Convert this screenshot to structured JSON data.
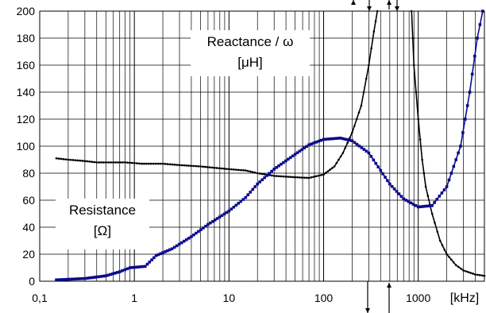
{
  "chart_data": {
    "type": "line",
    "x_scale": "log",
    "xlim": [
      0.1,
      5000
    ],
    "ylim": [
      0,
      200
    ],
    "grid": true,
    "xlabel": "",
    "ylabel": "",
    "x_unit_label": "[kHz]",
    "x_tick_labels": [
      "0,1",
      "1",
      "10",
      "100",
      "1000"
    ],
    "x_tick_values": [
      0.1,
      1,
      10,
      100,
      1000
    ],
    "y_tick_values": [
      0,
      20,
      40,
      60,
      80,
      100,
      120,
      140,
      160,
      180,
      200
    ],
    "y_tick_labels": [
      "0",
      "20",
      "40",
      "60",
      "80",
      "100",
      "120",
      "140",
      "160",
      "180",
      "200"
    ],
    "annotations": [
      {
        "id": "reactance",
        "line1": "Reactance / ω",
        "line2": "[μH]"
      },
      {
        "id": "resistance",
        "line1": "Resistance",
        "line2": "[Ω]"
      }
    ],
    "series": [
      {
        "id": "resistance",
        "color": "#000000",
        "marker": "small-dot",
        "points": [
          [
            0.15,
            91
          ],
          [
            0.2,
            90
          ],
          [
            0.3,
            89
          ],
          [
            0.4,
            88
          ],
          [
            0.5,
            88
          ],
          [
            0.6,
            88
          ],
          [
            0.8,
            88
          ],
          [
            1.0,
            87.5
          ],
          [
            1.2,
            87
          ],
          [
            1.5,
            87
          ],
          [
            2,
            87
          ],
          [
            3,
            86
          ],
          [
            5,
            85
          ],
          [
            7,
            84
          ],
          [
            10,
            83
          ],
          [
            15,
            82
          ],
          [
            20,
            80
          ],
          [
            30,
            78
          ],
          [
            50,
            77
          ],
          [
            70,
            76.5
          ],
          [
            100,
            79
          ],
          [
            130,
            85
          ],
          [
            160,
            95
          ],
          [
            200,
            110
          ],
          [
            250,
            130
          ],
          [
            300,
            160
          ],
          [
            340,
            185
          ],
          [
            370,
            200
          ]
        ],
        "points_2": [
          [
            850,
            200
          ],
          [
            900,
            160
          ],
          [
            1000,
            120
          ],
          [
            1100,
            90
          ],
          [
            1200,
            70
          ],
          [
            1400,
            50
          ],
          [
            1700,
            30
          ],
          [
            2000,
            20
          ],
          [
            2500,
            12
          ],
          [
            3000,
            8
          ],
          [
            4000,
            5
          ],
          [
            5000,
            4
          ]
        ]
      },
      {
        "id": "reactance",
        "color": "#0a0a8c",
        "marker": "square",
        "points": [
          [
            0.15,
            1
          ],
          [
            0.3,
            2
          ],
          [
            0.5,
            4
          ],
          [
            0.7,
            7
          ],
          [
            0.9,
            10
          ],
          [
            1.3,
            11
          ],
          [
            1.7,
            19
          ],
          [
            2.5,
            24
          ],
          [
            4,
            33
          ],
          [
            6,
            42
          ],
          [
            10,
            52
          ],
          [
            15,
            62
          ],
          [
            20,
            72
          ],
          [
            30,
            83
          ],
          [
            50,
            94
          ],
          [
            70,
            101
          ],
          [
            100,
            105
          ],
          [
            150,
            106
          ],
          [
            200,
            104
          ],
          [
            300,
            95
          ],
          [
            400,
            82
          ],
          [
            500,
            72
          ],
          [
            700,
            61
          ],
          [
            1000,
            55
          ],
          [
            1400,
            56
          ],
          [
            2000,
            70
          ],
          [
            2800,
            100
          ],
          [
            3500,
            140
          ],
          [
            4200,
            180
          ],
          [
            4800,
            200
          ]
        ]
      }
    ]
  }
}
